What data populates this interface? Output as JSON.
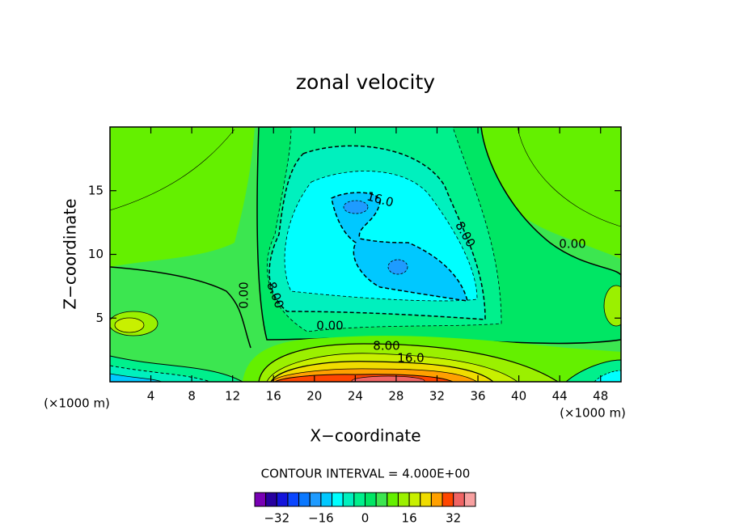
{
  "chart_data": {
    "type": "contour",
    "title": "zonal velocity",
    "x_label": "X−coordinate",
    "y_label": "Z−coordinate",
    "x_unit_label": "(×1000 m)",
    "xlim": [
      0,
      50
    ],
    "xticks": [
      4,
      8,
      12,
      16,
      20,
      24,
      28,
      32,
      36,
      40,
      44,
      48
    ],
    "ylim": [
      0,
      20
    ],
    "yticks": [
      5,
      10,
      15
    ],
    "contour_interval_label": "CONTOUR INTERVAL = 4.000E+00",
    "levels": [
      -36,
      -32,
      -28,
      -24,
      -20,
      -16,
      -12,
      -8,
      -4,
      0,
      4,
      8,
      12,
      16,
      20,
      24,
      28,
      32,
      36
    ],
    "colors": [
      "#7800b4",
      "#2800a0",
      "#1414dc",
      "#0a46ff",
      "#0a78ff",
      "#1e9bff",
      "#00c8ff",
      "#00ffff",
      "#00f0be",
      "#00f08c",
      "#00e664",
      "#3ce650",
      "#64f000",
      "#9bf000",
      "#c8f000",
      "#f0dc00",
      "#ffa000",
      "#ff4600",
      "#f06464",
      "#f8a0a0"
    ],
    "colorbar_ticks": [
      {
        "value": -32,
        "label": "−32"
      },
      {
        "value": -16,
        "label": "−16"
      },
      0,
      16,
      32
    ],
    "contour_labels": [
      "16.0",
      "8.00",
      "0.00",
      "8.00",
      "0.00",
      "0.00",
      "8.00",
      "16.0"
    ]
  }
}
